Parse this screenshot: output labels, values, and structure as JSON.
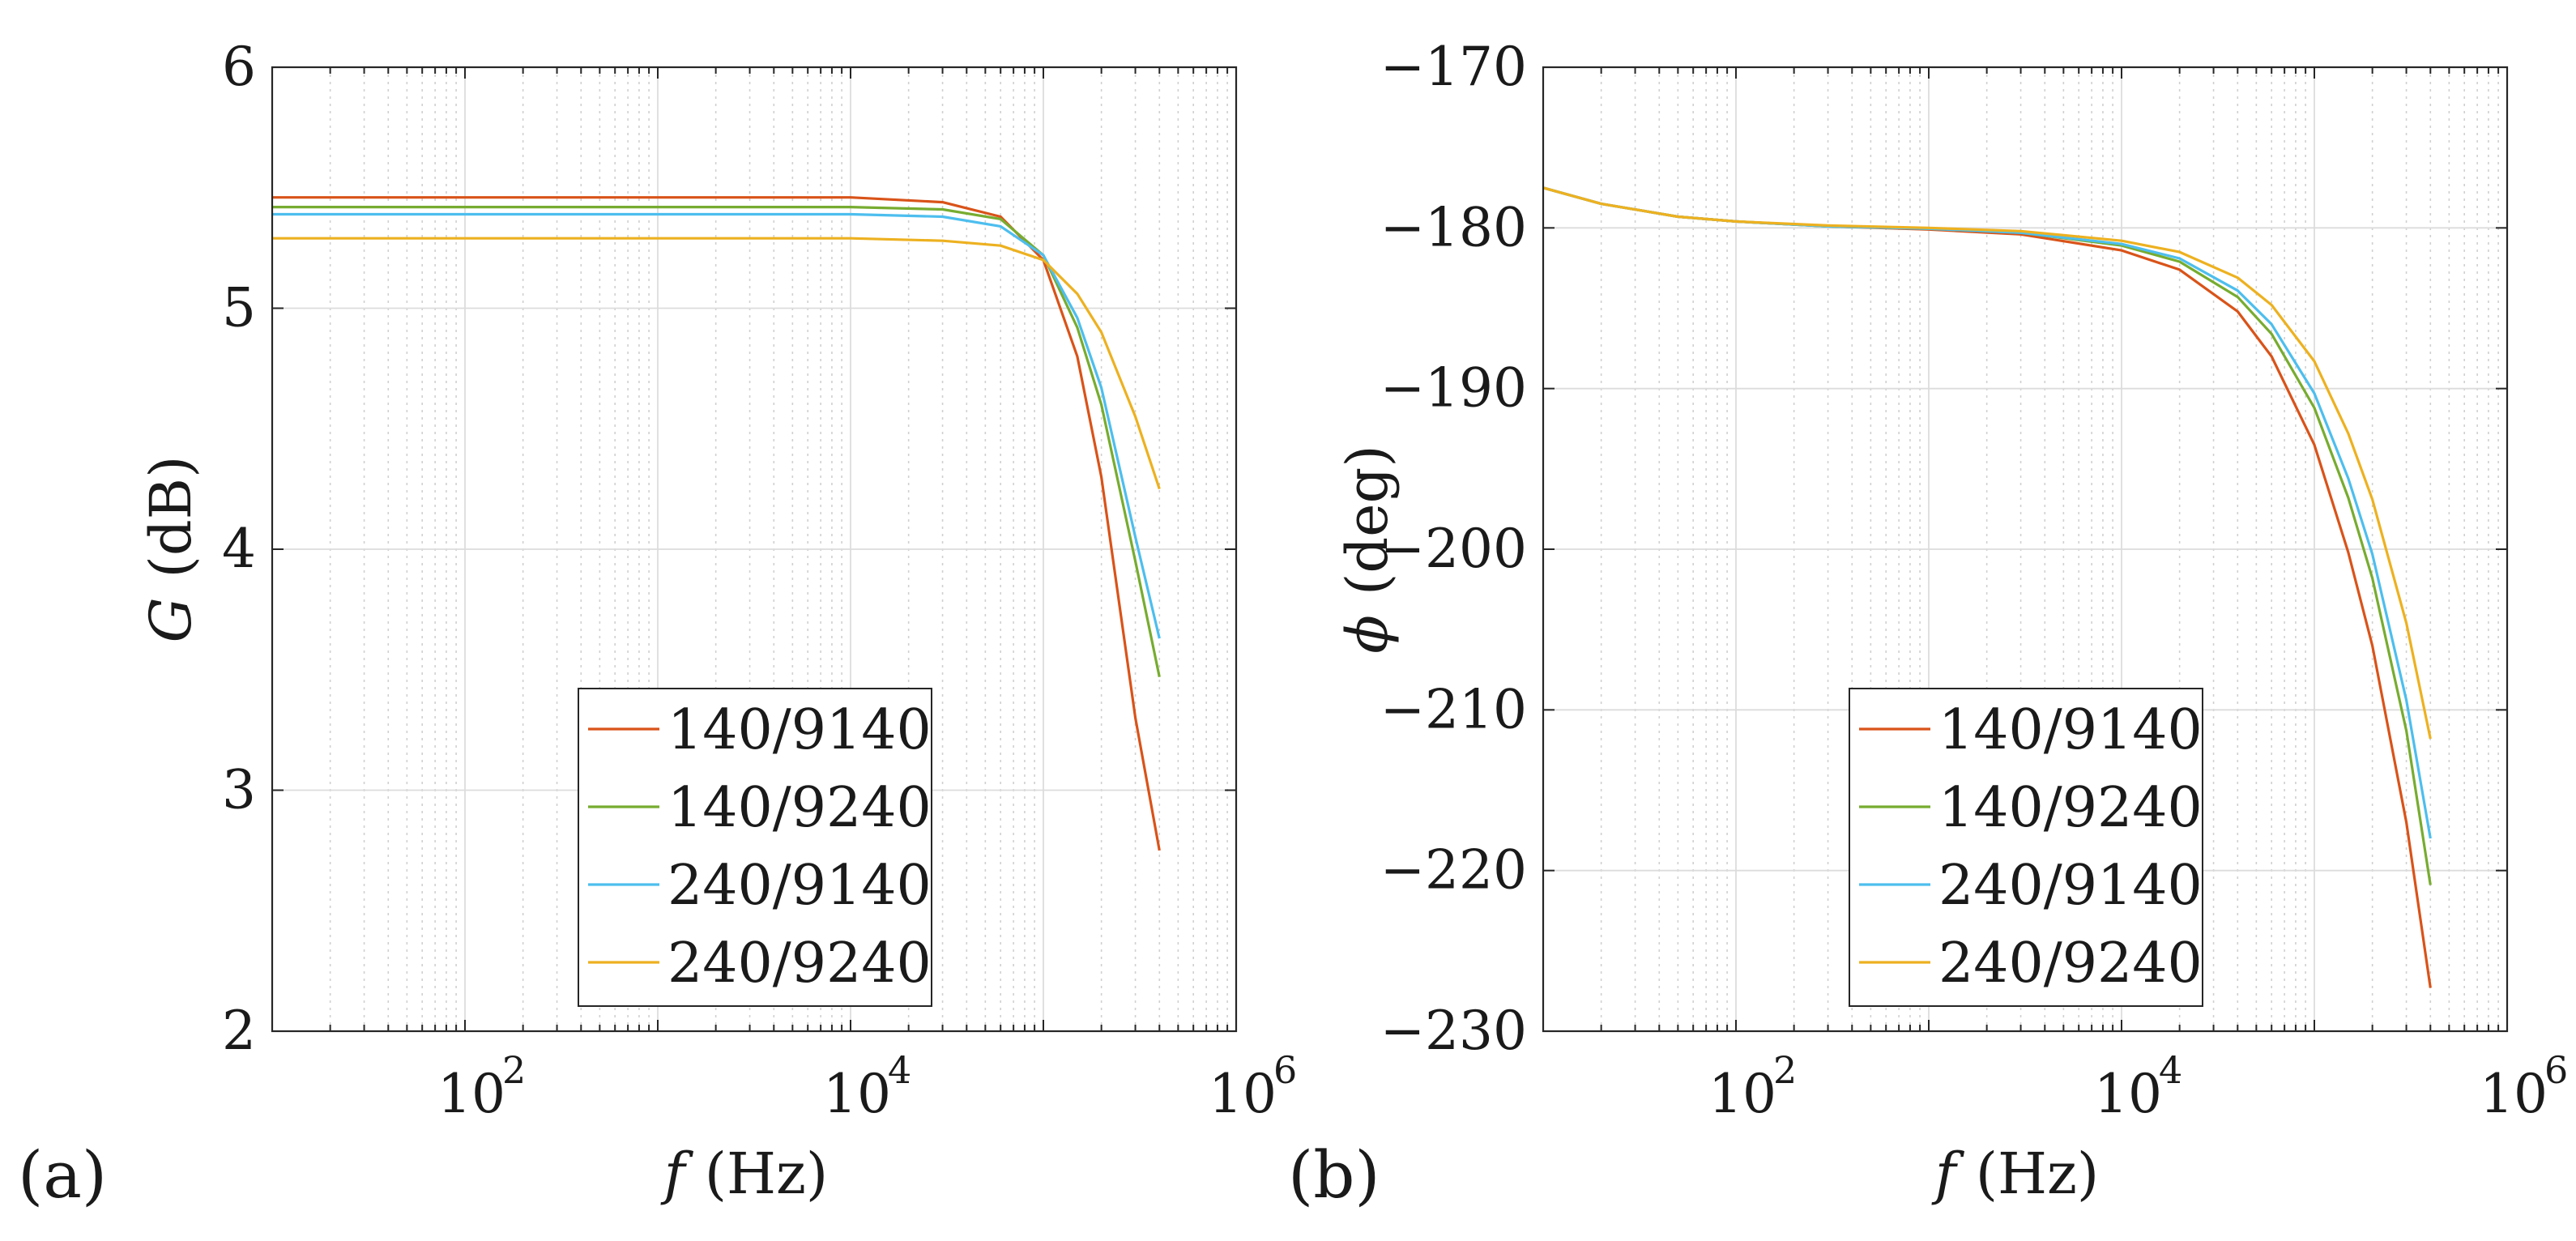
{
  "chart_data": [
    {
      "panel": "(a)",
      "type": "line",
      "xscale": "log",
      "xlim": [
        10,
        1000000
      ],
      "ylim": [
        2,
        6
      ],
      "xlabel": {
        "var": "f",
        "unit": "(Hz)"
      },
      "ylabel": {
        "var": "G",
        "unit": "(dB)"
      },
      "xticks": [
        {
          "base": "10",
          "exp": "2"
        },
        {
          "base": "10",
          "exp": "4"
        },
        {
          "base": "10",
          "exp": "6"
        }
      ],
      "yticks": [
        "2",
        "3",
        "4",
        "5",
        "6"
      ],
      "legend_position": "bottom-center",
      "series": [
        {
          "name": "140/9140",
          "color": "#d95319",
          "x": [
            10,
            100,
            1000,
            10000,
            30000,
            60000,
            100000,
            150000,
            200000,
            300000,
            400000
          ],
          "y": [
            5.46,
            5.46,
            5.46,
            5.46,
            5.44,
            5.38,
            5.2,
            4.8,
            4.3,
            3.3,
            2.75
          ]
        },
        {
          "name": "140/9240",
          "color": "#77ac30",
          "x": [
            10,
            100,
            1000,
            10000,
            30000,
            60000,
            100000,
            150000,
            200000,
            300000,
            400000
          ],
          "y": [
            5.42,
            5.42,
            5.42,
            5.42,
            5.41,
            5.37,
            5.22,
            4.92,
            4.6,
            3.95,
            3.47
          ]
        },
        {
          "name": "240/9140",
          "color": "#4dbeee",
          "x": [
            10,
            100,
            1000,
            10000,
            30000,
            60000,
            100000,
            150000,
            200000,
            300000,
            400000
          ],
          "y": [
            5.39,
            5.39,
            5.39,
            5.39,
            5.38,
            5.34,
            5.22,
            4.96,
            4.67,
            4.05,
            3.63
          ]
        },
        {
          "name": "240/9240",
          "color": "#edb120",
          "x": [
            10,
            100,
            1000,
            10000,
            30000,
            60000,
            100000,
            150000,
            200000,
            300000,
            400000
          ],
          "y": [
            5.29,
            5.29,
            5.29,
            5.29,
            5.28,
            5.26,
            5.2,
            5.06,
            4.9,
            4.55,
            4.25
          ]
        }
      ]
    },
    {
      "panel": "(b)",
      "type": "line",
      "xscale": "log",
      "xlim": [
        10,
        1000000
      ],
      "ylim": [
        -230,
        -170
      ],
      "xlabel": {
        "var": "f",
        "unit": "(Hz)"
      },
      "ylabel": {
        "var": "ϕ",
        "unit": "(deg)"
      },
      "xticks": [
        {
          "base": "10",
          "exp": "2"
        },
        {
          "base": "10",
          "exp": "4"
        },
        {
          "base": "10",
          "exp": "6"
        }
      ],
      "yticks": [
        "−230",
        "−220",
        "−210",
        "−200",
        "−190",
        "−180",
        "−170"
      ],
      "legend_position": "bottom-center",
      "series": [
        {
          "name": "140/9140",
          "color": "#d95319",
          "x": [
            10,
            20,
            50,
            100,
            300,
            1000,
            3000,
            10000,
            20000,
            40000,
            60000,
            100000,
            150000,
            200000,
            300000,
            400000
          ],
          "y": [
            -177.5,
            -178.5,
            -179.3,
            -179.6,
            -179.9,
            -180.1,
            -180.4,
            -181.4,
            -182.6,
            -185.2,
            -188.0,
            -193.5,
            -200.2,
            -206.0,
            -217.0,
            -227.3
          ]
        },
        {
          "name": "140/9240",
          "color": "#77ac30",
          "x": [
            10,
            20,
            50,
            100,
            300,
            1000,
            3000,
            10000,
            20000,
            40000,
            60000,
            100000,
            150000,
            200000,
            300000,
            400000
          ],
          "y": [
            -177.5,
            -178.5,
            -179.3,
            -179.6,
            -179.9,
            -180.05,
            -180.3,
            -181.1,
            -182.1,
            -184.3,
            -186.6,
            -191.2,
            -196.8,
            -201.8,
            -211.3,
            -220.9
          ]
        },
        {
          "name": "240/9140",
          "color": "#4dbeee",
          "x": [
            10,
            20,
            50,
            100,
            300,
            1000,
            3000,
            10000,
            20000,
            40000,
            60000,
            100000,
            150000,
            200000,
            300000,
            400000
          ],
          "y": [
            -177.5,
            -178.5,
            -179.3,
            -179.6,
            -179.9,
            -180.05,
            -180.3,
            -181.0,
            -181.9,
            -183.9,
            -186.0,
            -190.3,
            -195.6,
            -200.3,
            -209.4,
            -218.0
          ]
        },
        {
          "name": "240/9240",
          "color": "#edb120",
          "x": [
            10,
            20,
            50,
            100,
            300,
            1000,
            3000,
            10000,
            20000,
            40000,
            60000,
            100000,
            150000,
            200000,
            300000,
            400000
          ],
          "y": [
            -177.5,
            -178.5,
            -179.3,
            -179.6,
            -179.85,
            -180.0,
            -180.2,
            -180.8,
            -181.5,
            -183.1,
            -184.8,
            -188.3,
            -192.8,
            -196.9,
            -204.6,
            -211.8
          ]
        }
      ]
    }
  ]
}
